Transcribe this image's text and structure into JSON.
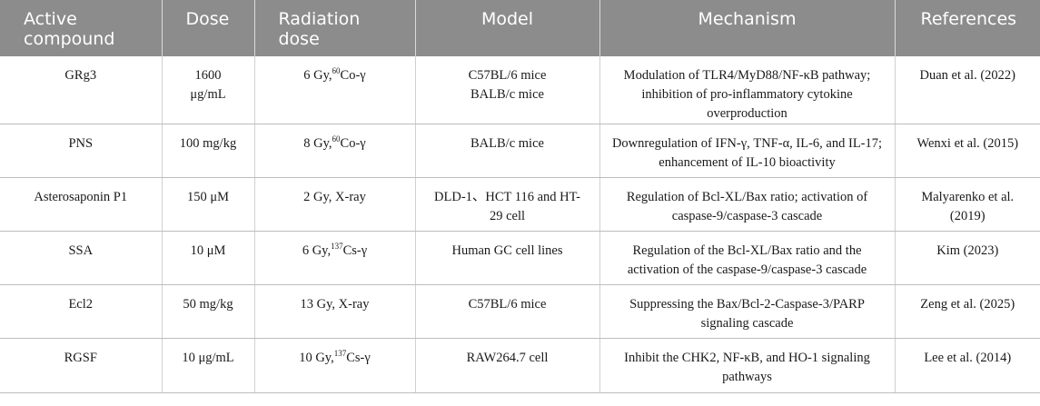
{
  "headers": [
    "Active compound",
    "Dose",
    "Radiation dose",
    "Model",
    "Mechanism",
    "References"
  ],
  "rows": [
    {
      "compound": "GRg3",
      "dose": "1600 μg/mL",
      "radiation": {
        "pre": "6 Gy,",
        "sup": "60",
        "post": "Co-γ"
      },
      "model": "C57BL/6 mice BALB/c mice",
      "mechanism": "Modulation of TLR4/MyD88/NF-κB pathway; inhibition of pro-inflammatory cytokine overproduction",
      "reference": "Duan et al. (2022)"
    },
    {
      "compound": "PNS",
      "dose": "100 mg/kg",
      "radiation": {
        "pre": "8 Gy,",
        "sup": "60",
        "post": "Co-γ"
      },
      "model": "BALB/c mice",
      "mechanism": "Downregulation of IFN-γ, TNF-α, IL-6, and IL-17; enhancement of IL-10 bioactivity",
      "reference": "Wenxi et al. (2015)"
    },
    {
      "compound": "Asterosaponin P1",
      "dose": "150 μM",
      "radiation": {
        "pre": "2 Gy, X-ray",
        "sup": "",
        "post": ""
      },
      "model": "DLD-1、HCT 116 and HT-29 cell",
      "mechanism": "Regulation of Bcl-XL/Bax ratio; activation of caspase-9/caspase-3 cascade",
      "reference": "Malyarenko et al. (2019)"
    },
    {
      "compound": "SSA",
      "dose": "10 μM",
      "radiation": {
        "pre": "6 Gy,",
        "sup": "137",
        "post": "Cs-γ"
      },
      "model": "Human GC cell lines",
      "mechanism": "Regulation of the Bcl-XL/Bax ratio and the activation of the caspase-9/caspase-3 cascade",
      "reference": "Kim (2023)"
    },
    {
      "compound": "Ecl2",
      "dose": "50 mg/kg",
      "radiation": {
        "pre": "13 Gy, X-ray",
        "sup": "",
        "post": ""
      },
      "model": "C57BL/6 mice",
      "mechanism": "Suppressing the Bax/Bcl-2-Caspase-3/PARP signaling cascade",
      "reference": "Zeng et al. (2025)"
    },
    {
      "compound": "RGSF",
      "dose": "10 μg/mL",
      "radiation": {
        "pre": "10 Gy,",
        "sup": "137",
        "post": "Cs-γ"
      },
      "model": "RAW264.7 cell",
      "mechanism": "Inhibit the CHK2, NF-κB, and HO-1 signaling pathways",
      "reference": "Lee et al. (2014)"
    }
  ]
}
